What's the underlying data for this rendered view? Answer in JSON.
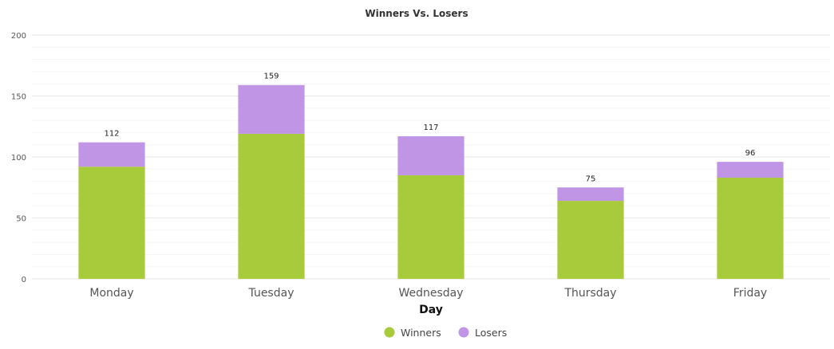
{
  "chart_data": {
    "type": "bar",
    "stacked": true,
    "title": "Winners Vs. Losers",
    "xlabel": "Day",
    "ylabel": "",
    "ylim": [
      0,
      200
    ],
    "yticks": [
      0,
      50,
      100,
      150,
      200
    ],
    "grid": true,
    "legend_position": "bottom",
    "categories": [
      "Monday",
      "Tuesday",
      "Wednesday",
      "Thursday",
      "Friday"
    ],
    "series": [
      {
        "name": "Winners",
        "color": "#a8cb3c",
        "values": [
          92,
          119,
          85,
          64,
          83
        ]
      },
      {
        "name": "Losers",
        "color": "#c195e6",
        "values": [
          20,
          40,
          32,
          11,
          13
        ]
      }
    ],
    "totals": [
      "112",
      "159",
      "117",
      "75",
      "96"
    ]
  }
}
